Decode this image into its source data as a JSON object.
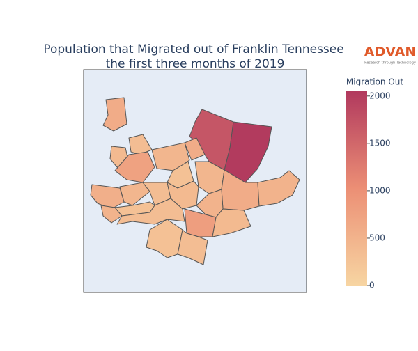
{
  "chart_data": {
    "type": "choropleth",
    "title": "Population that Migrated out of Franklin Tennessee",
    "subtitle": "the first three months of 2019",
    "colorbar_title": "Migration Out",
    "zlim": [
      0,
      2050
    ],
    "zticks": [
      0,
      500,
      1000,
      1500,
      2000
    ],
    "colorscale": [
      [
        0,
        "#f7d5a2"
      ],
      [
        0.5,
        "#ec8f75"
      ],
      [
        1,
        "#b1395e"
      ]
    ],
    "values": [
      2030,
      1700,
      600,
      350,
      400,
      750,
      450,
      600,
      300,
      450,
      600,
      500,
      550,
      450,
      350,
      400,
      500,
      500,
      300,
      350,
      800,
      400,
      300,
      350
    ],
    "logo": {
      "name": "ADVAN",
      "tagline": "Research through Technology"
    }
  }
}
